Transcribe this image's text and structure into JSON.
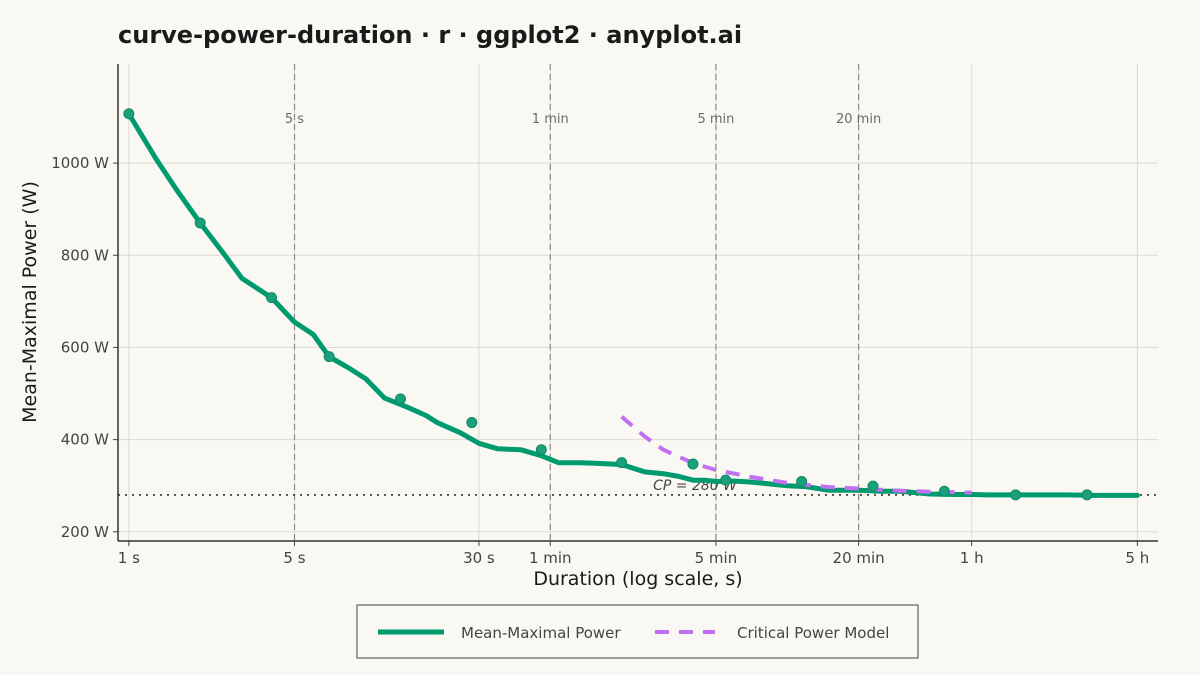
{
  "chart_data": {
    "type": "line",
    "title": "curve-power-duration · r · ggplot2 · anyplot.ai",
    "xlabel": "Duration (log scale, s)",
    "ylabel": "Mean-Maximal Power (W)",
    "x_scale": "log",
    "xlim_seconds": [
      0.9,
      22000
    ],
    "ylim": [
      180,
      1215
    ],
    "grid": true,
    "x_ticks": [
      {
        "value": 1,
        "label": "1 s"
      },
      {
        "value": 5,
        "label": "5 s"
      },
      {
        "value": 30,
        "label": "30 s"
      },
      {
        "value": 60,
        "label": "1 min"
      },
      {
        "value": 300,
        "label": "5 min"
      },
      {
        "value": 1200,
        "label": "20 min"
      },
      {
        "value": 3600,
        "label": "1 h"
      },
      {
        "value": 18000,
        "label": "5 h"
      }
    ],
    "y_ticks": [
      {
        "value": 200,
        "label": "200 W"
      },
      {
        "value": 400,
        "label": "400 W"
      },
      {
        "value": 600,
        "label": "600 W"
      },
      {
        "value": 800,
        "label": "800 W"
      },
      {
        "value": 1000,
        "label": "1000 W"
      }
    ],
    "reference_lines": [
      {
        "value": 5,
        "label": "5 s"
      },
      {
        "value": 60,
        "label": "1 min"
      },
      {
        "value": 300,
        "label": "5 min"
      },
      {
        "value": 1200,
        "label": "20 min"
      }
    ],
    "critical_power": {
      "value": 280,
      "label": "CP = 280 W"
    },
    "legend_position": "bottom",
    "series": [
      {
        "name": "Mean-Maximal Power",
        "color": "#009a6f",
        "style": "solid",
        "x": [
          1,
          1.3,
          1.6,
          2,
          2.5,
          3,
          4,
          5,
          6,
          7,
          8.5,
          10,
          12,
          15,
          18,
          20,
          25,
          30,
          36,
          45,
          55,
          65,
          80,
          90,
          120,
          150,
          180,
          210,
          240,
          270,
          300,
          360,
          420,
          480,
          600,
          720,
          900,
          1200,
          1500,
          1800,
          2400,
          3000,
          3600,
          4200,
          4800,
          6000,
          7200,
          9000,
          12000,
          15000,
          18000
        ],
        "y": [
          1107,
          1010,
          940,
          870,
          805,
          750,
          708,
          655,
          628,
          580,
          555,
          532,
          490,
          470,
          452,
          437,
          415,
          392,
          380,
          378,
          365,
          350,
          350,
          349,
          346,
          330,
          326,
          320,
          312,
          312,
          309,
          310,
          308,
          305,
          300,
          298,
          290,
          290,
          288,
          288,
          282,
          281,
          281,
          280,
          280,
          280,
          280,
          280,
          279,
          279,
          279
        ]
      },
      {
        "name": "Critical Power Model",
        "color": "#c070f0",
        "style": "dashed",
        "x": [
          120,
          150,
          180,
          240,
          300,
          420,
          600,
          900,
          1200,
          1800,
          2400,
          3600
        ],
        "y": [
          450,
          407,
          378,
          349,
          334,
          319,
          306,
          297,
          294,
          289,
          287,
          285
        ]
      }
    ],
    "markers": {
      "series": "Mean-Maximal Power",
      "x": [
        1,
        2,
        4,
        7,
        14,
        28,
        55,
        120,
        240,
        330,
        690,
        1380,
        2760,
        5520,
        11040
      ],
      "y": [
        1107,
        870,
        708,
        580,
        488,
        437,
        378,
        350,
        347,
        312,
        309,
        299,
        288,
        280,
        280
      ]
    }
  }
}
